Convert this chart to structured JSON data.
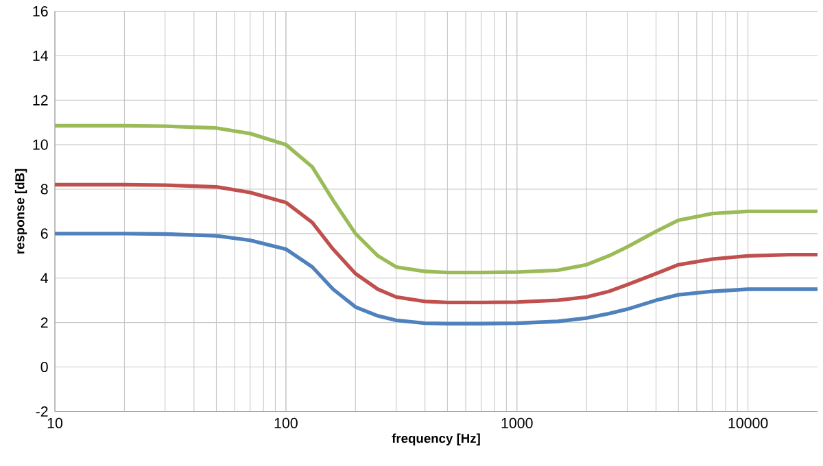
{
  "chart_data": {
    "type": "line",
    "xlabel": "frequency [Hz]",
    "ylabel": "response [dB]",
    "log": "x",
    "grid": true,
    "marker": "none",
    "line_style": "solid",
    "x": [
      10,
      20,
      30,
      50,
      70,
      100,
      130,
      160,
      200,
      250,
      300,
      400,
      500,
      700,
      1000,
      1500,
      2000,
      2500,
      3000,
      4000,
      5000,
      7000,
      10000,
      15000,
      20000
    ],
    "xlim": [
      10,
      20000
    ],
    "xticks": [
      10,
      100,
      1000,
      10000
    ],
    "ylim": [
      -2,
      16
    ],
    "yticks": [
      -2,
      0,
      2,
      4,
      6,
      8,
      10,
      12,
      14,
      16
    ],
    "series": [
      {
        "color": "#9bbb59",
        "values": [
          10.85,
          10.85,
          10.83,
          10.75,
          10.5,
          10.0,
          9.0,
          7.5,
          6.0,
          5.0,
          4.5,
          4.3,
          4.25,
          4.25,
          4.27,
          4.35,
          4.6,
          5.0,
          5.4,
          6.1,
          6.6,
          6.9,
          7.0,
          7.0,
          7.0
        ]
      },
      {
        "color": "#c0504d",
        "values": [
          8.2,
          8.2,
          8.18,
          8.1,
          7.85,
          7.4,
          6.5,
          5.3,
          4.2,
          3.5,
          3.15,
          2.95,
          2.9,
          2.9,
          2.92,
          3.0,
          3.15,
          3.4,
          3.7,
          4.2,
          4.6,
          4.85,
          5.0,
          5.05,
          5.05
        ]
      },
      {
        "color": "#4f81bd",
        "values": [
          6.0,
          6.0,
          5.98,
          5.9,
          5.7,
          5.3,
          4.5,
          3.5,
          2.7,
          2.3,
          2.1,
          1.97,
          1.95,
          1.95,
          1.97,
          2.05,
          2.2,
          2.4,
          2.6,
          3.0,
          3.25,
          3.4,
          3.5,
          3.5,
          3.5
        ]
      }
    ]
  }
}
